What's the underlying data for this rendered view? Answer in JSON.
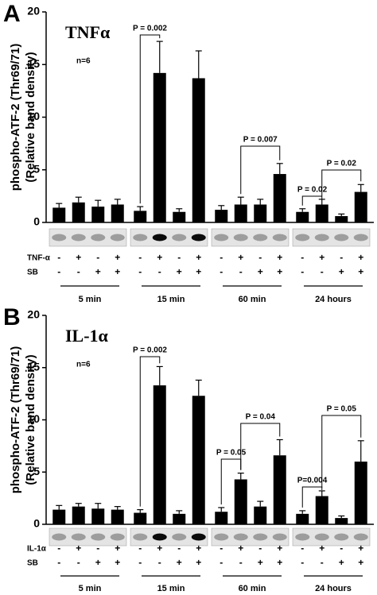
{
  "chart_data": [
    {
      "type": "bar",
      "panel_label": "A",
      "title": "TNFα",
      "y_label": [
        "phospho-ATF-2 (Thr69/71)",
        "(Relative band density)"
      ],
      "n_label": "n=6",
      "values": [
        1.4,
        1.9,
        1.5,
        1.7,
        1.1,
        14.2,
        1.0,
        13.7,
        1.2,
        1.7,
        1.7,
        4.6,
        1.0,
        1.7,
        0.6,
        2.9
      ],
      "errors": [
        0.4,
        0.5,
        0.6,
        0.5,
        0.4,
        3.0,
        0.3,
        2.6,
        0.4,
        0.7,
        0.5,
        1.0,
        0.3,
        0.5,
        0.2,
        0.7
      ],
      "color": "#000000",
      "ylim": [
        0,
        20
      ],
      "yticks": [
        0,
        5,
        10,
        15,
        20
      ],
      "treatments": [
        {
          "name": "TNF-α",
          "signs": [
            "-",
            "+",
            "-",
            "+",
            "-",
            "+",
            "-",
            "+",
            "-",
            "+",
            "-",
            "+",
            "-",
            "+",
            "-",
            "+"
          ]
        },
        {
          "name": "SB",
          "signs": [
            "-",
            "-",
            "+",
            "+",
            "-",
            "-",
            "+",
            "+",
            "-",
            "-",
            "+",
            "+",
            "-",
            "-",
            "+",
            "+"
          ]
        }
      ],
      "groups": [
        "5 min",
        "15 min",
        "60 min",
        "24 hours"
      ],
      "annotations": [
        "P = 0.002",
        "P = 0.007",
        "P = 0.02",
        "P = 0.02"
      ]
    },
    {
      "type": "bar",
      "panel_label": "B",
      "title": "IL-1α",
      "y_label": [
        "phospho-ATF-2 (Thr69/71)",
        "(Relative band density)"
      ],
      "n_label": "n=6",
      "values": [
        1.4,
        1.7,
        1.5,
        1.4,
        1.1,
        13.3,
        1.0,
        12.3,
        1.2,
        4.3,
        1.7,
        6.6,
        1.0,
        2.7,
        0.6,
        6.0
      ],
      "errors": [
        0.4,
        0.3,
        0.5,
        0.3,
        0.3,
        1.8,
        0.3,
        1.5,
        0.4,
        0.6,
        0.5,
        1.5,
        0.3,
        0.5,
        0.2,
        2.0
      ],
      "color": "#000000",
      "ylim": [
        0,
        20
      ],
      "yticks": [
        0,
        5,
        10,
        15,
        20
      ],
      "treatments": [
        {
          "name": "IL-1α",
          "signs": [
            "-",
            "+",
            "-",
            "+",
            "-",
            "+",
            "-",
            "+",
            "-",
            "+",
            "-",
            "+",
            "-",
            "+",
            "-",
            "+"
          ]
        },
        {
          "name": "SB",
          "signs": [
            "-",
            "-",
            "+",
            "+",
            "-",
            "-",
            "+",
            "+",
            "-",
            "-",
            "+",
            "+",
            "-",
            "-",
            "+",
            "+"
          ]
        }
      ],
      "groups": [
        "5 min",
        "15 min",
        "60 min",
        "24 hours"
      ],
      "annotations": [
        "P = 0.002",
        "P = 0.05",
        "P = 0.04",
        "P=0.004",
        "P = 0.05"
      ]
    }
  ]
}
